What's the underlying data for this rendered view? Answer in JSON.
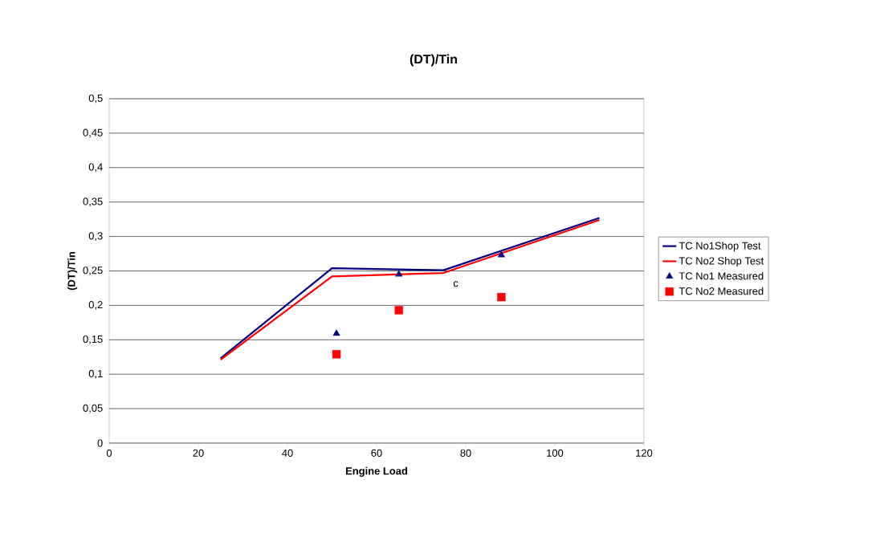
{
  "chart_data": {
    "type": "line",
    "title": "(DT)/Tin",
    "xlabel": "Engine Load",
    "ylabel": "(DT)/Tin",
    "series": [
      {
        "name": "TC No1Shop Test",
        "color": "#000080",
        "marker": "none",
        "x": [
          25,
          50,
          75,
          110
        ],
        "values": [
          0.123,
          0.254,
          0.251,
          0.327
        ]
      },
      {
        "name": "TC No2 Shop Test",
        "color": "#ff0000",
        "marker": "none",
        "x": [
          25,
          50,
          75,
          110
        ],
        "values": [
          0.121,
          0.242,
          0.247,
          0.324
        ]
      },
      {
        "name": "TC No1 Measured",
        "type": "scatter",
        "color": "#000080",
        "marker": "triangle",
        "x": [
          51,
          65,
          88
        ],
        "values": [
          0.159,
          0.245,
          0.273
        ]
      },
      {
        "name": "TC No2 Measured",
        "type": "scatter",
        "color": "#ff0000",
        "marker": "square",
        "x": [
          51,
          65,
          88
        ],
        "values": [
          0.129,
          0.193,
          0.212
        ]
      }
    ],
    "annotations": [
      "c"
    ],
    "xlim": [
      0,
      120
    ],
    "xticks": [
      0,
      20,
      40,
      60,
      80,
      100,
      120
    ],
    "ylim": [
      0,
      0.5
    ],
    "yticks": [
      {
        "value": 0,
        "label": "0"
      },
      {
        "value": 0.05,
        "label": "0,05"
      },
      {
        "value": 0.1,
        "label": "0,1"
      },
      {
        "value": 0.15,
        "label": "0,15"
      },
      {
        "value": 0.2,
        "label": "0,2"
      },
      {
        "value": 0.25,
        "label": "0,25"
      },
      {
        "value": 0.3,
        "label": "0,3"
      },
      {
        "value": 0.35,
        "label": "0,35"
      },
      {
        "value": 0.4,
        "label": "0,4"
      },
      {
        "value": 0.45,
        "label": "0,45"
      },
      {
        "value": 0.5,
        "label": "0,5"
      }
    ],
    "grid": "y",
    "legend": "right"
  }
}
